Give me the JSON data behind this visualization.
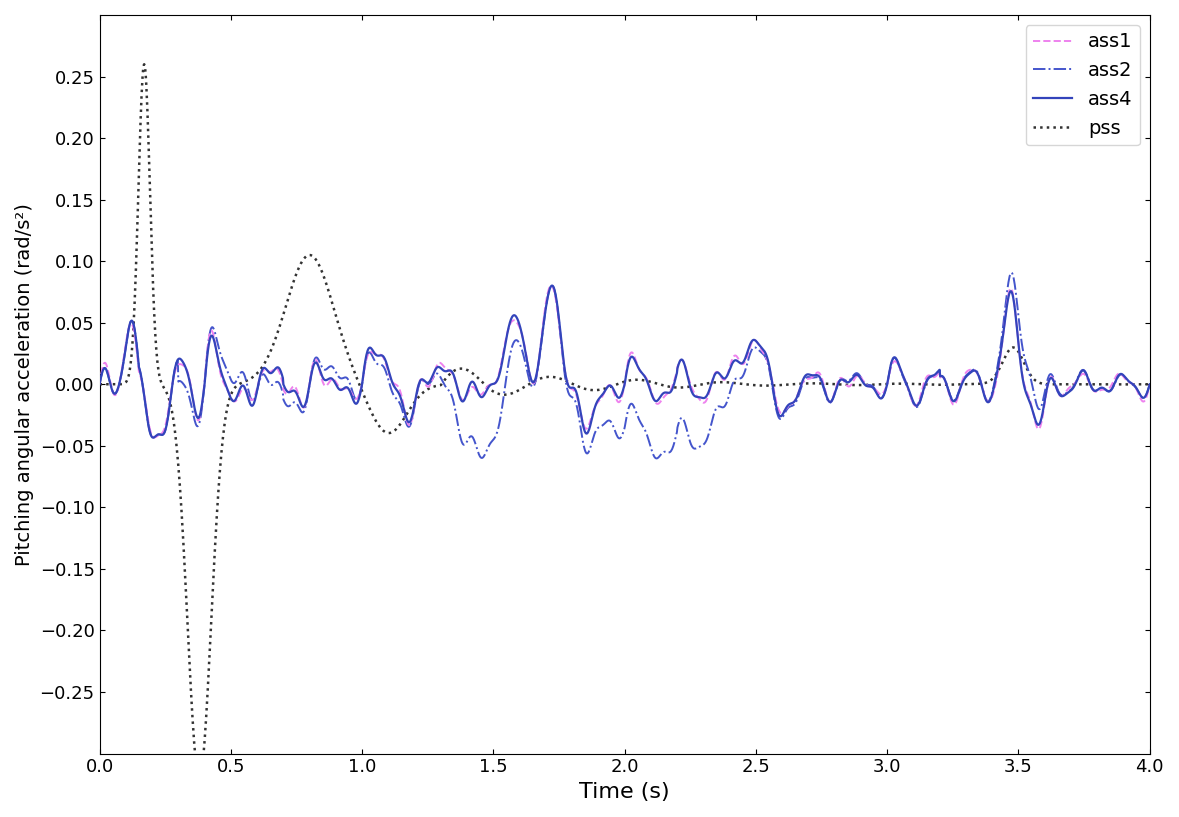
{
  "title": "",
  "xlabel": "Time (s)",
  "ylabel": "Pitching angular acceleration (rad/s²)",
  "xlim": [
    0,
    4
  ],
  "ylim": [
    -0.3,
    0.3
  ],
  "yticks": [
    -0.25,
    -0.2,
    -0.15,
    -0.1,
    -0.05,
    0,
    0.05,
    0.1,
    0.15,
    0.2,
    0.25
  ],
  "xticks": [
    0,
    0.5,
    1,
    1.5,
    2,
    2.5,
    3,
    3.5,
    4
  ],
  "series": {
    "ass1": {
      "color": "#EE82EE",
      "linestyle": "--",
      "linewidth": 1.4,
      "zorder": 4
    },
    "ass2": {
      "color": "#4455CC",
      "linestyle": "-.",
      "linewidth": 1.4,
      "zorder": 3
    },
    "ass4": {
      "color": "#3344BB",
      "linestyle": "-",
      "linewidth": 1.6,
      "zorder": 5
    },
    "pss": {
      "color": "#333333",
      "linestyle": ":",
      "linewidth": 1.8,
      "zorder": 2
    }
  },
  "legend": {
    "loc": "upper right",
    "fontsize": 14,
    "frameon": true
  },
  "figsize": [
    11.79,
    8.17
  ],
  "dpi": 100,
  "background_color": "#ffffff"
}
